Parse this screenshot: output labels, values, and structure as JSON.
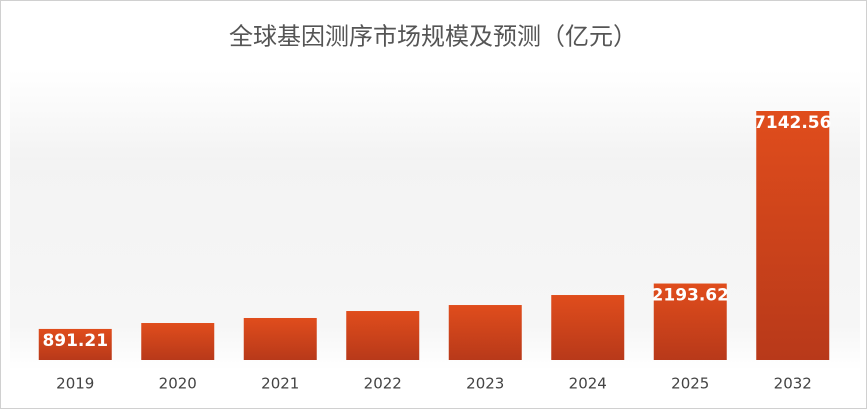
{
  "chart_data": {
    "type": "bar",
    "title": "全球基因测序市场规模及预测（亿元）",
    "categories": [
      "2019",
      "2020",
      "2021",
      "2022",
      "2023",
      "2024",
      "2025",
      "2032"
    ],
    "values": [
      891.21,
      1061,
      1205,
      1405,
      1577,
      1864,
      2193.62,
      7142.56
    ],
    "value_labels": [
      "891.21",
      null,
      null,
      null,
      null,
      null,
      "2193.62",
      "7142.56"
    ],
    "color": "#d4461b"
  }
}
